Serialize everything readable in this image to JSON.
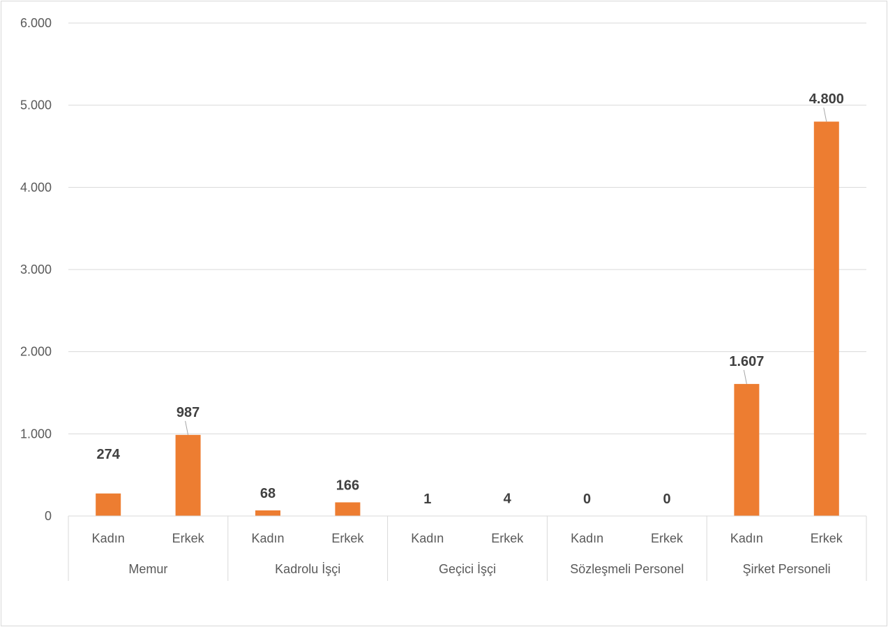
{
  "chart_data": {
    "type": "bar",
    "groups": [
      {
        "name": "Memur",
        "categories": [
          "Kadın",
          "Erkek"
        ],
        "values": [
          274,
          987
        ],
        "labels": [
          "274",
          "987"
        ]
      },
      {
        "name": "Kadrolu İşçi",
        "categories": [
          "Kadın",
          "Erkek"
        ],
        "values": [
          68,
          166
        ],
        "labels": [
          "68",
          "166"
        ]
      },
      {
        "name": "Geçici İşçi",
        "categories": [
          "Kadın",
          "Erkek"
        ],
        "values": [
          1,
          4
        ],
        "labels": [
          "1",
          "4"
        ]
      },
      {
        "name": "Sözleşmeli Personel",
        "categories": [
          "Kadın",
          "Erkek"
        ],
        "values": [
          0,
          0
        ],
        "labels": [
          "0",
          "0"
        ]
      },
      {
        "name": "Şirket Personeli",
        "categories": [
          "Kadın",
          "Erkek"
        ],
        "values": [
          1607,
          4800
        ],
        "labels": [
          "1.607",
          "4.800"
        ]
      }
    ],
    "ylim": [
      0,
      6000
    ],
    "yticks": [
      0,
      1000,
      2000,
      3000,
      4000,
      5000,
      6000
    ],
    "ytick_labels": [
      "0",
      "1.000",
      "2.000",
      "3.000",
      "4.000",
      "5.000",
      "6.000"
    ],
    "grid": true,
    "bar_color": "#ED7D31",
    "grid_color": "#d9d9d9",
    "title": "",
    "xlabel": "",
    "ylabel": ""
  }
}
